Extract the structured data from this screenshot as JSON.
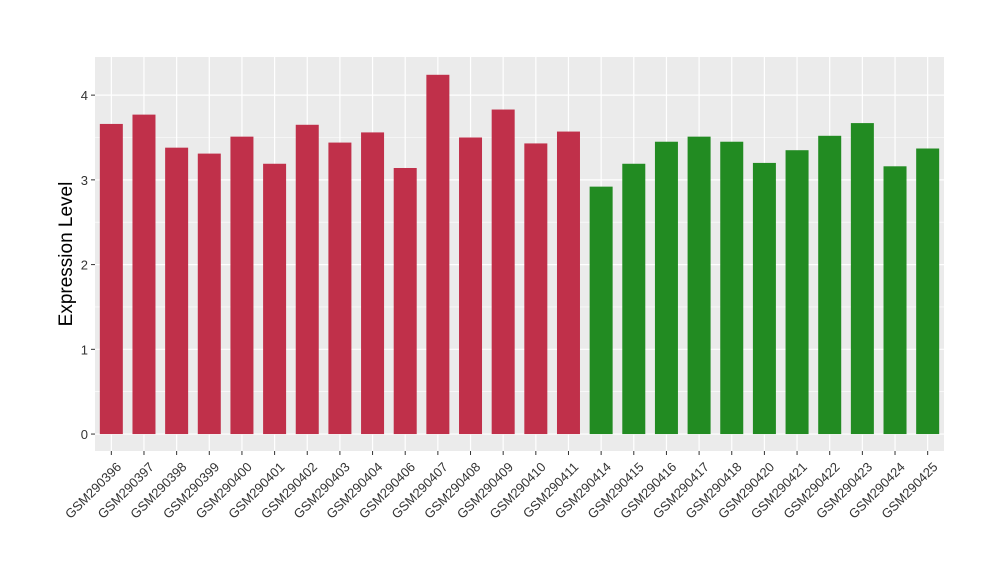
{
  "chart_data": {
    "type": "bar",
    "title": "",
    "xlabel": "",
    "ylabel": "Expression Level",
    "ylim": [
      -0.2,
      4.45
    ],
    "yticks": [
      0,
      1,
      2,
      3,
      4
    ],
    "grid": true,
    "legend": "none",
    "categories": [
      "GSM290396",
      "GSM290397",
      "GSM290398",
      "GSM290399",
      "GSM290400",
      "GSM290401",
      "GSM290402",
      "GSM290403",
      "GSM290404",
      "GSM290406",
      "GSM290407",
      "GSM290408",
      "GSM290409",
      "GSM290410",
      "GSM290411",
      "GSM290414",
      "GSM290415",
      "GSM290416",
      "GSM290417",
      "GSM290418",
      "GSM290420",
      "GSM290421",
      "GSM290422",
      "GSM290423",
      "GSM290424",
      "GSM290425"
    ],
    "values": [
      3.66,
      3.77,
      3.38,
      3.31,
      3.51,
      3.19,
      3.65,
      3.44,
      3.56,
      3.14,
      4.24,
      3.5,
      3.83,
      3.43,
      3.57,
      2.92,
      3.19,
      3.45,
      3.51,
      3.45,
      3.2,
      3.35,
      3.52,
      3.67,
      3.16,
      3.37
    ],
    "bar_groups": [
      0,
      0,
      0,
      0,
      0,
      0,
      0,
      0,
      0,
      0,
      0,
      0,
      0,
      0,
      0,
      1,
      1,
      1,
      1,
      1,
      1,
      1,
      1,
      1,
      1,
      1
    ],
    "group_colors": [
      "#C0304A",
      "#228B22"
    ],
    "panel_color": "#EBEBEB",
    "grid_color": "#FFFFFF"
  }
}
